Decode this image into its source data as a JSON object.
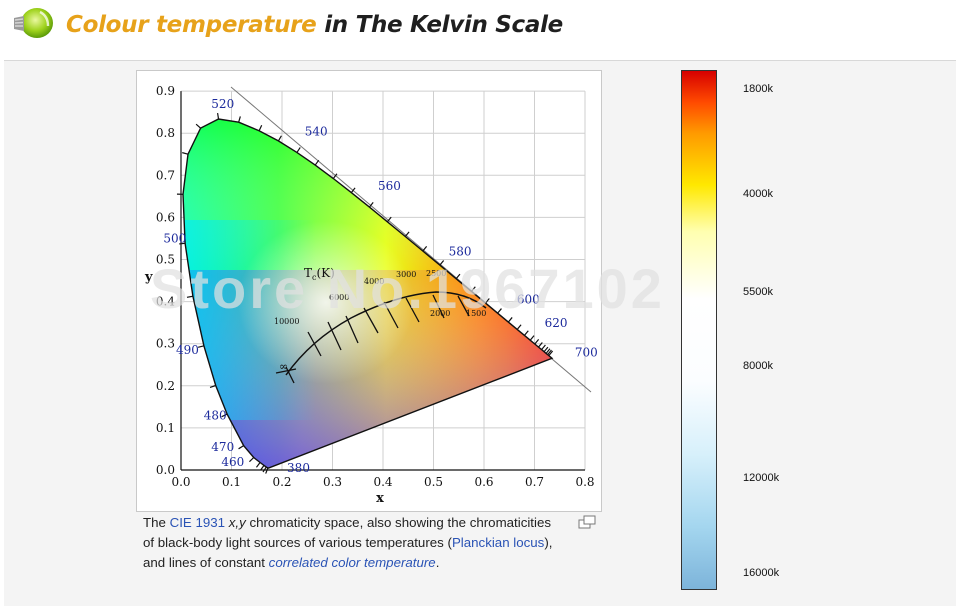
{
  "header": {
    "title_part1": "Colour temperature",
    "title_part2": "in The Kelvin Scale"
  },
  "diagram": {
    "x_ticks": [
      "0.0",
      "0.1",
      "0.2",
      "0.3",
      "0.4",
      "0.5",
      "0.6",
      "0.7",
      "0.8"
    ],
    "y_ticks": [
      "0.0",
      "0.1",
      "0.2",
      "0.3",
      "0.4",
      "0.5",
      "0.6",
      "0.7",
      "0.8",
      "0.9"
    ],
    "x_label": "x",
    "y_label": "y",
    "wavelengths": [
      "520",
      "540",
      "560",
      "580",
      "600",
      "620",
      "700",
      "500",
      "490",
      "480",
      "470",
      "460",
      "380"
    ],
    "locus_title": "T",
    "locus_title_sub": "c",
    "locus_title_unit": "(K)",
    "temps": [
      "10000",
      "6000",
      "4000",
      "3000",
      "2500",
      "2000",
      "1500",
      "∞"
    ]
  },
  "caption": {
    "p1": "The ",
    "link_cie": "CIE 1931",
    "p2": " ",
    "xy": "x,y",
    "p3": " chromaticity space, also showing the chromaticities of black-body light sources of various temperatures (",
    "link_planck": "Planckian locus",
    "p4": "), and lines of constant ",
    "link_cct": "correlated color temperature",
    "p5": "."
  },
  "scale": {
    "labels": [
      "1800k",
      "4000k",
      "5500k",
      "8000k",
      "12000k",
      "16000k"
    ]
  },
  "watermark": "Store No.1967102",
  "colors": {
    "title_accent": "#e7a21a",
    "title_dark": "#1f1f1f",
    "link": "#2a53b5",
    "tick_label": "#1c2a9c"
  }
}
